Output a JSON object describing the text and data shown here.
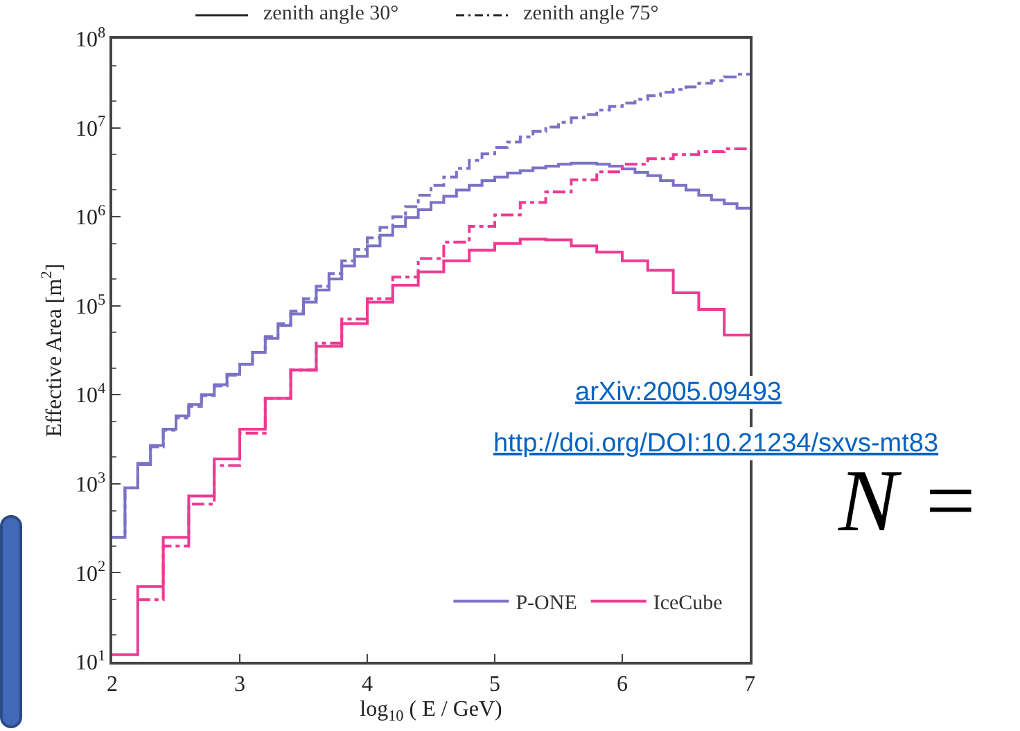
{
  "chart_data": {
    "type": "step",
    "xlabel": "log$_{10}$ ( E / GeV)",
    "ylabel": "Effective Area [m$^{2}$]",
    "xlim": [
      2,
      7
    ],
    "xticks": [
      2,
      3,
      4,
      5,
      6,
      7
    ],
    "ylim": [
      10,
      100000000
    ],
    "yticks": [
      {
        "value": 10,
        "label": "10$^{1}$"
      },
      {
        "value": 100,
        "label": "10$^{2}$"
      },
      {
        "value": 1000,
        "label": "10$^{3}$"
      },
      {
        "value": 10000,
        "label": "10$^{4}$"
      },
      {
        "value": 100000,
        "label": "10$^{5}$"
      },
      {
        "value": 1000000,
        "label": "10$^{6}$"
      },
      {
        "value": 10000000,
        "label": "10$^{7}$"
      },
      {
        "value": 100000000,
        "label": "10$^{8}$"
      }
    ],
    "log": "y",
    "grid": false,
    "legend": "bottom right",
    "annotations": [
      "zenith angle 30°",
      "zenith angle 75°",
      "arXiv:2005.09493",
      "http://doi.org/DOI:10.21234/sxvs-mt83",
      "N ="
    ],
    "series": [
      {
        "name": "P-ONE",
        "color": "#7b72c6",
        "line_style": "solid",
        "x": [
          2.0,
          2.1,
          2.2,
          2.3,
          2.4,
          2.5,
          2.6,
          2.7,
          2.8,
          2.9,
          3.0,
          3.1,
          3.2,
          3.3,
          3.4,
          3.5,
          3.6,
          3.7,
          3.8,
          3.9,
          4.0,
          4.1,
          4.2,
          4.3,
          4.4,
          4.5,
          4.6,
          4.7,
          4.8,
          4.9,
          5.0,
          5.1,
          5.2,
          5.3,
          5.4,
          5.5,
          5.6,
          5.7,
          5.8,
          5.9,
          6.0,
          6.1,
          6.2,
          6.3,
          6.4,
          6.5,
          6.6,
          6.7,
          6.8,
          6.9,
          7.0
        ],
        "values": [
          250,
          900,
          1700,
          2700,
          4100,
          5800,
          7800,
          10000,
          13000,
          17000,
          22000,
          30000,
          43000,
          60000,
          81000,
          110000,
          150000,
          200000,
          280000,
          360000,
          470000,
          620000,
          780000,
          980000,
          1200000,
          1450000,
          1700000,
          2000000,
          2250000,
          2550000,
          2800000,
          3100000,
          3300000,
          3550000,
          3700000,
          3900000,
          4000000,
          4000000,
          3900000,
          3700000,
          3450000,
          3150000,
          2900000,
          2550000,
          2250000,
          2000000,
          1750000,
          1550000,
          1400000,
          1250000,
          1250000
        ]
      },
      {
        "color": "#7b72c6",
        "line_style": "dashdot",
        "x": [
          2.0,
          2.1,
          2.2,
          2.3,
          2.4,
          2.5,
          2.6,
          2.7,
          2.8,
          2.9,
          3.0,
          3.1,
          3.2,
          3.3,
          3.4,
          3.5,
          3.6,
          3.7,
          3.8,
          3.9,
          4.0,
          4.1,
          4.2,
          4.3,
          4.4,
          4.5,
          4.6,
          4.7,
          4.8,
          4.9,
          5.0,
          5.1,
          5.2,
          5.3,
          5.4,
          5.5,
          5.6,
          5.7,
          5.8,
          5.9,
          6.0,
          6.1,
          6.2,
          6.3,
          6.4,
          6.5,
          6.6,
          6.7,
          6.8,
          6.9,
          7.0
        ],
        "values": [
          250,
          900,
          1650,
          2600,
          4000,
          5500,
          7400,
          9800,
          12600,
          16600,
          22000,
          30000,
          45000,
          63000,
          87000,
          120000,
          166000,
          230000,
          320000,
          430000,
          580000,
          760000,
          1000000,
          1300000,
          1750000,
          2250000,
          2800000,
          3500000,
          4300000,
          5100000,
          6000000,
          6900000,
          7900000,
          9100000,
          10200000,
          11500000,
          12900000,
          14100000,
          15800000,
          17400000,
          19000000,
          20900000,
          22900000,
          25100000,
          26900000,
          28800000,
          31600000,
          33900000,
          37200000,
          40000000,
          40000000
        ]
      },
      {
        "name": "IceCube",
        "color": "#ec3b92",
        "line_style": "solid",
        "x": [
          2.0,
          2.2,
          2.4,
          2.6,
          2.8,
          3.0,
          3.2,
          3.4,
          3.6,
          3.8,
          4.0,
          4.2,
          4.4,
          4.6,
          4.8,
          5.0,
          5.2,
          5.4,
          5.6,
          5.8,
          6.0,
          6.2,
          6.4,
          6.6,
          6.8,
          7.0
        ],
        "values": [
          12,
          70,
          250,
          730,
          1900,
          4100,
          9100,
          19000,
          35000,
          63000,
          110000,
          170000,
          240000,
          320000,
          420000,
          500000,
          560000,
          550000,
          470000,
          400000,
          320000,
          250000,
          140000,
          91000,
          47000,
          47000
        ]
      },
      {
        "color": "#ec3b92",
        "line_style": "dashdot",
        "x": [
          2.2,
          2.4,
          2.6,
          2.8,
          3.0,
          3.2,
          3.4,
          3.6,
          3.8,
          4.0,
          4.2,
          4.4,
          4.6,
          4.8,
          5.0,
          5.2,
          5.4,
          5.6,
          5.8,
          6.0,
          6.2,
          6.4,
          6.6,
          6.8,
          7.0
        ],
        "values": [
          50,
          200,
          590,
          1600,
          3700,
          9100,
          19000,
          38000,
          71000,
          120000,
          210000,
          340000,
          520000,
          780000,
          1050000,
          1450000,
          1900000,
          2600000,
          3200000,
          3900000,
          4500000,
          5000000,
          5400000,
          5800000,
          5800000
        ]
      }
    ]
  }
}
